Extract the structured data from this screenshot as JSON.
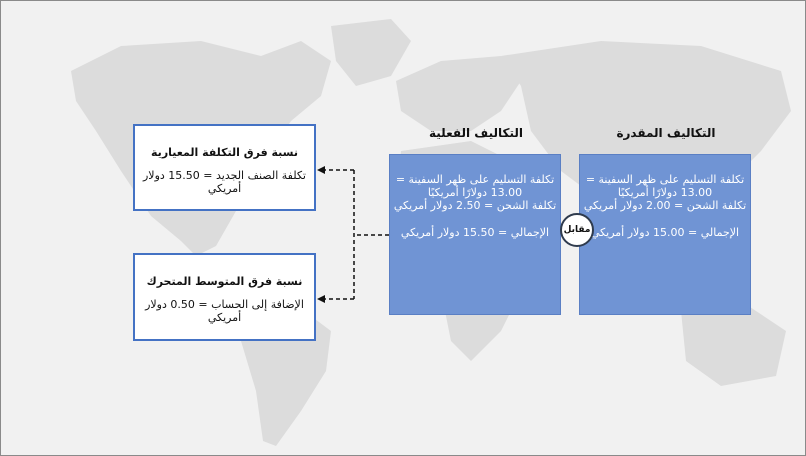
{
  "estimated": {
    "title": "التكاليف المقدرة",
    "line1": "تكلفة التسليم على ظهر السفينة =",
    "line2": "13.00 دولارًا أمريكيًا",
    "line3": "تكلفة الشحن = 2.00 دولار أمريكي",
    "total": "الإجمالي = 15.00 دولار أمريكي"
  },
  "actual": {
    "title": "التكاليف الفعلية",
    "line1": "تكلفة التسليم على ظهر السفينة =",
    "line2": "13.00 دولارًا أمريكيًا",
    "line3": "تكلفة الشحن = 2.50 دولار أمريكي",
    "total": "الإجمالي = 15.50 دولار أمريكي"
  },
  "versus_label": "مقابل",
  "standard_variance": {
    "title": "نسبة فرق التكلفة المعيارية",
    "text": "تكلفة الصنف الجديد = 15.50 دولار أمريكي"
  },
  "moving_average_variance": {
    "title": "نسبة فرق المتوسط المتحرك",
    "text": "الإضافة إلى الحساب = 0.50 دولار أمريكي"
  },
  "colors": {
    "box_fill": "#7094d4",
    "box_border": "#4472c4",
    "map_land": "#dcdcdc",
    "background": "#f1f1f1"
  }
}
